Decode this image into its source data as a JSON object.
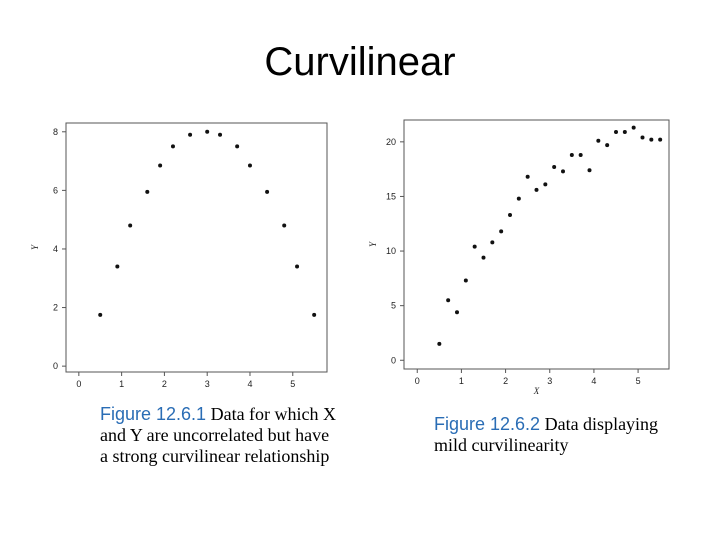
{
  "slide": {
    "title": "Curvilinear"
  },
  "captions": [
    {
      "figure": "Figure 12.6.1",
      "text": "Data for which X and Y are uncorrelated but have a strong curvilinear relationship"
    },
    {
      "figure": "Figure 12.6.2",
      "text": "Data displaying mild curvilinearity"
    }
  ],
  "chart_data": [
    {
      "type": "scatter",
      "title": "",
      "xlabel": "",
      "ylabel": "Y",
      "xlim": [
        -0.3,
        5.8
      ],
      "ylim": [
        -0.2,
        8.3
      ],
      "xticks": [
        0,
        1,
        2,
        3,
        4,
        5
      ],
      "yticks": [
        0,
        2,
        4,
        6,
        8
      ],
      "grid": false,
      "x": [
        0.5,
        0.9,
        1.2,
        1.6,
        1.9,
        2.2,
        2.6,
        3.0,
        3.3,
        3.7,
        4.0,
        4.4,
        4.8,
        5.1,
        5.5
      ],
      "y": [
        1.75,
        3.4,
        4.8,
        5.95,
        6.85,
        7.5,
        7.9,
        8.0,
        7.9,
        7.5,
        6.85,
        5.95,
        4.8,
        3.4,
        1.75
      ]
    },
    {
      "type": "scatter",
      "title": "",
      "xlabel": "X",
      "ylabel": "Y",
      "xlim": [
        -0.3,
        5.7
      ],
      "ylim": [
        -0.8,
        22.0
      ],
      "xticks": [
        0,
        1,
        2,
        3,
        4,
        5
      ],
      "yticks": [
        0,
        5,
        10,
        15,
        20
      ],
      "grid": false,
      "x": [
        0.5,
        0.7,
        0.9,
        1.1,
        1.3,
        1.5,
        1.7,
        1.9,
        2.1,
        2.3,
        2.5,
        2.7,
        2.9,
        3.1,
        3.3,
        3.5,
        3.7,
        3.9,
        4.1,
        4.3,
        4.5,
        4.7,
        4.9,
        5.1,
        5.3,
        5.5
      ],
      "y": [
        1.5,
        5.5,
        4.4,
        7.3,
        10.4,
        9.4,
        10.8,
        11.8,
        13.3,
        14.8,
        16.8,
        15.6,
        16.1,
        17.7,
        17.3,
        18.8,
        18.8,
        17.4,
        20.1,
        19.7,
        20.9,
        20.9,
        21.3,
        20.4,
        20.2,
        20.2
      ]
    }
  ]
}
